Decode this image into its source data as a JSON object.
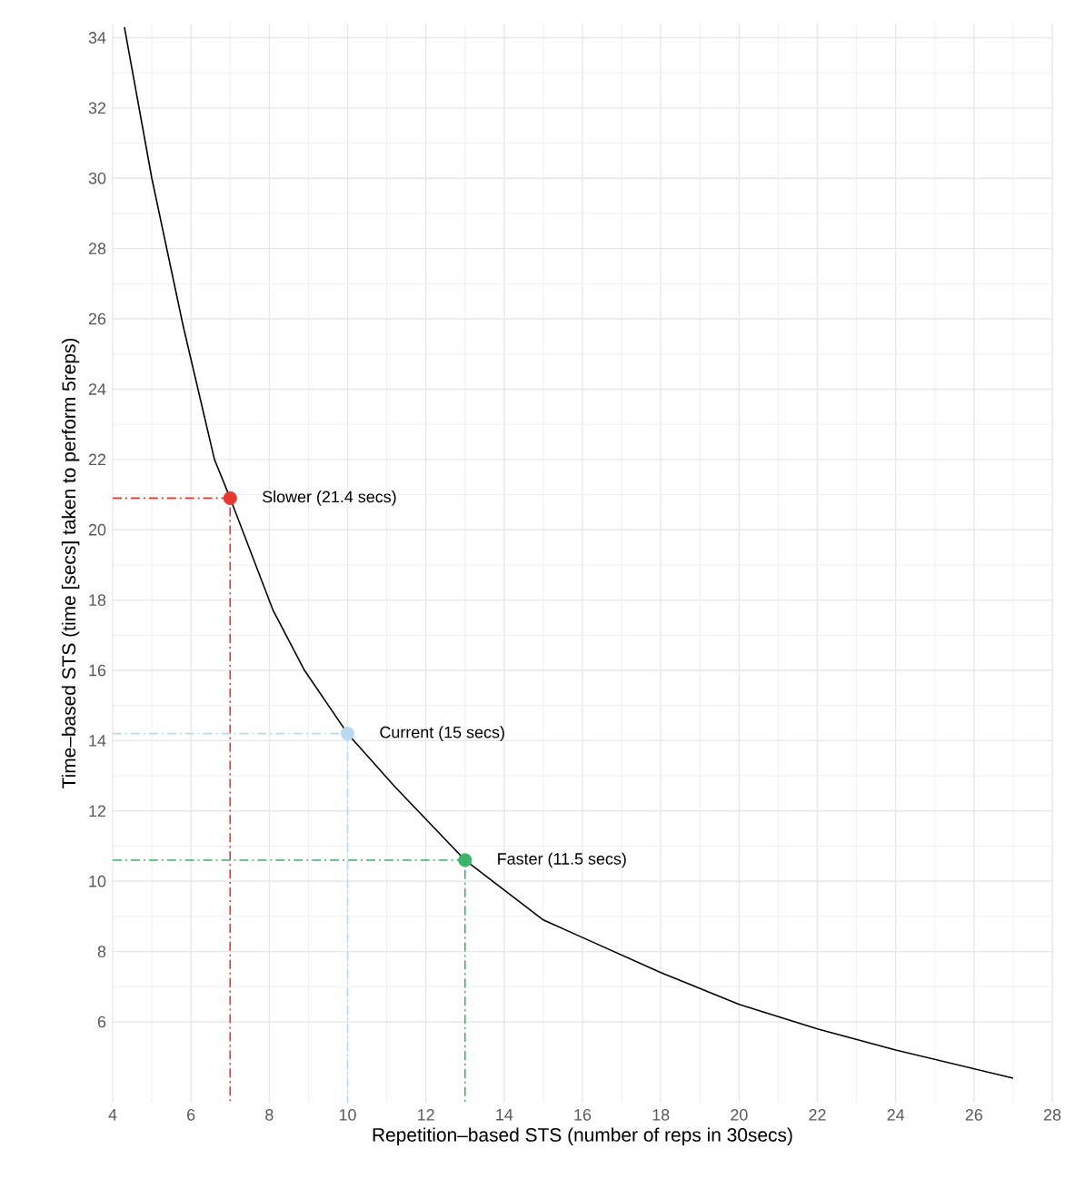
{
  "chart_data": {
    "type": "line",
    "xlabel": "Repetition–based STS (number of reps in 30secs)",
    "ylabel": "Time–based STS (time [secs]  taken to perform 5reps)",
    "xlim": [
      4,
      28
    ],
    "ylim": [
      3.7,
      34.4
    ],
    "xticks": [
      4,
      6,
      8,
      10,
      12,
      14,
      16,
      18,
      20,
      22,
      24,
      26,
      28
    ],
    "yticks": [
      6,
      8,
      10,
      12,
      14,
      16,
      18,
      20,
      22,
      24,
      26,
      28,
      30,
      32,
      34
    ],
    "grid": true,
    "series": [
      {
        "color": "#000000",
        "line_style": "solid",
        "x": [
          4.3,
          5.0,
          5.8,
          6.6,
          7,
          8.1,
          8.9,
          10,
          11.2,
          13,
          15,
          16,
          18,
          20,
          22,
          24,
          27
        ],
        "values": [
          34.3,
          30,
          25.8,
          22,
          20.9,
          17.7,
          16.0,
          14.2,
          12.7,
          10.6,
          8.9,
          8.4,
          7.4,
          6.5,
          5.8,
          5.2,
          4.4
        ]
      },
      {
        "type": "line",
        "color": "#e8382e",
        "line_style": "dashed",
        "x": [
          4,
          7,
          7
        ],
        "values": [
          20.9,
          20.9,
          3.7
        ]
      },
      {
        "type": "line",
        "color": "#b8daf0",
        "line_style": "dashed",
        "x": [
          4,
          10,
          10
        ],
        "values": [
          14.2,
          14.2,
          3.7
        ]
      },
      {
        "type": "line",
        "color": "#3db36a",
        "line_style": "dashed",
        "x": [
          4,
          13,
          13
        ],
        "values": [
          10.6,
          10.6,
          3.7
        ]
      },
      {
        "type": "scatter",
        "marker": "circle",
        "colors": [
          "#e8382e",
          "#b8daf0",
          "#3db36a"
        ],
        "x": [
          7,
          10,
          13
        ],
        "values": [
          20.9,
          14.2,
          10.6
        ]
      }
    ],
    "annotations": [
      {
        "text": "Slower (21.4 secs)",
        "x": 7,
        "y": 20.9
      },
      {
        "text": "Current (15 secs)",
        "x": 10,
        "y": 14.2
      },
      {
        "text": "Faster (11.5 secs)",
        "x": 13,
        "y": 10.6
      }
    ]
  }
}
